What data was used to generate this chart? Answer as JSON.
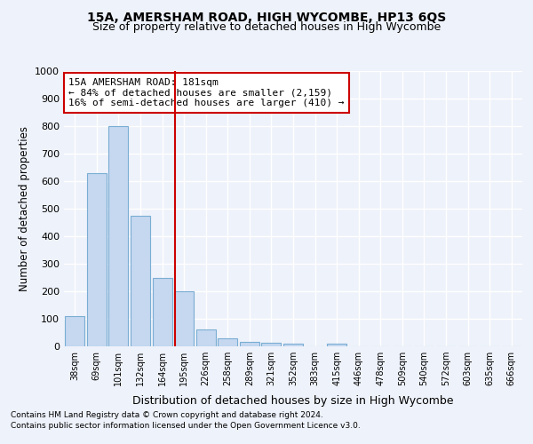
{
  "title": "15A, AMERSHAM ROAD, HIGH WYCOMBE, HP13 6QS",
  "subtitle": "Size of property relative to detached houses in High Wycombe",
  "xlabel": "Distribution of detached houses by size in High Wycombe",
  "ylabel": "Number of detached properties",
  "footnote1": "Contains HM Land Registry data © Crown copyright and database right 2024.",
  "footnote2": "Contains public sector information licensed under the Open Government Licence v3.0.",
  "bar_labels": [
    "38sqm",
    "69sqm",
    "101sqm",
    "132sqm",
    "164sqm",
    "195sqm",
    "226sqm",
    "258sqm",
    "289sqm",
    "321sqm",
    "352sqm",
    "383sqm",
    "415sqm",
    "446sqm",
    "478sqm",
    "509sqm",
    "540sqm",
    "572sqm",
    "603sqm",
    "635sqm",
    "666sqm"
  ],
  "bar_values": [
    110,
    630,
    800,
    475,
    250,
    200,
    60,
    28,
    17,
    12,
    10,
    0,
    10,
    0,
    0,
    0,
    0,
    0,
    0,
    0,
    0
  ],
  "bar_color": "#c5d8f0",
  "bar_edge_color": "#7aadd4",
  "vline_x": 4.58,
  "vline_color": "#cc0000",
  "ylim": [
    0,
    1000
  ],
  "yticks": [
    0,
    100,
    200,
    300,
    400,
    500,
    600,
    700,
    800,
    900,
    1000
  ],
  "annotation_text": "15A AMERSHAM ROAD: 181sqm\n← 84% of detached houses are smaller (2,159)\n16% of semi-detached houses are larger (410) →",
  "annotation_box_color": "#ffffff",
  "annotation_border_color": "#cc0000",
  "background_color": "#eef2fa",
  "plot_bg_color": "#eef2fa",
  "grid_color": "#ffffff"
}
